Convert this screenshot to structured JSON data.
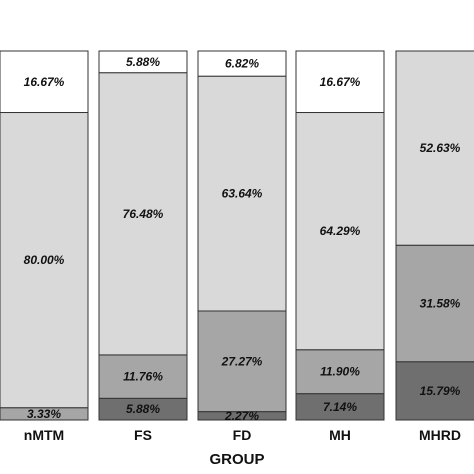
{
  "chart_data": {
    "type": "bar",
    "stacked": true,
    "percent": true,
    "xlabel": "GROUP",
    "categories": [
      "nMTM",
      "FS",
      "FD",
      "MH",
      "MHRD"
    ],
    "series": [
      {
        "values": [
          0.0,
          5.88,
          2.27,
          7.14,
          15.79
        ],
        "labels": [
          "",
          "5.88%",
          "2.27%",
          "7.14%",
          "15.79%"
        ],
        "color": "#6f6f6f"
      },
      {
        "values": [
          3.33,
          11.76,
          27.27,
          11.9,
          31.58
        ],
        "labels": [
          "3.33%",
          "11.76%",
          "27.27%",
          "11.90%",
          "31.58%"
        ],
        "color": "#a6a6a6"
      },
      {
        "values": [
          80.0,
          76.48,
          63.64,
          64.29,
          52.63
        ],
        "labels": [
          "80.00%",
          "76.48%",
          "63.64%",
          "64.29%",
          "52.63%"
        ],
        "color": "#d9d9d9"
      },
      {
        "values": [
          16.67,
          5.88,
          6.82,
          16.67,
          0.0
        ],
        "labels": [
          "16.67%",
          "5.88%",
          "6.82%",
          "16.67%",
          ""
        ],
        "color": "#ffffff"
      }
    ],
    "ylim": [
      0,
      100
    ],
    "grid": false,
    "legend": "none"
  }
}
